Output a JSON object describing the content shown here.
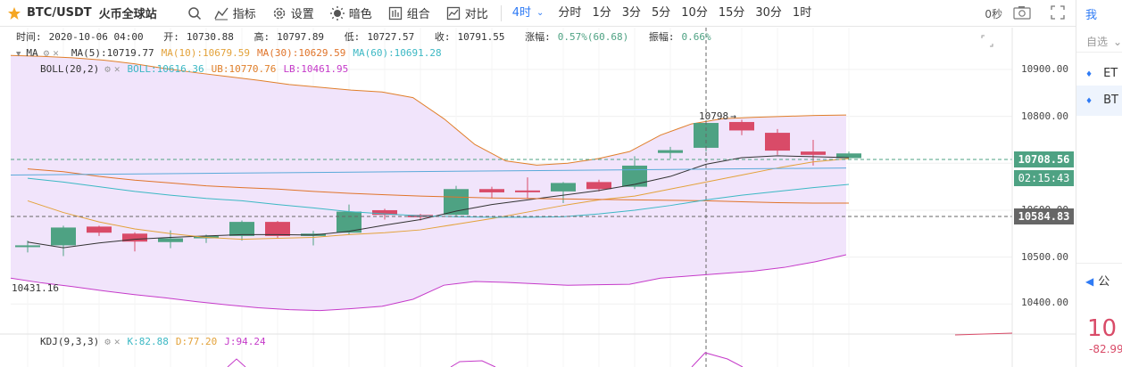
{
  "toolbar": {
    "symbol": "BTC/USDT",
    "exchange": "火币全球站",
    "indicators": "指标",
    "settings": "设置",
    "theme": "暗色",
    "combine": "组合",
    "compare": "对比",
    "intervals": [
      "4时",
      "分时",
      "1分",
      "3分",
      "5分",
      "10分",
      "15分",
      "30分",
      "1时"
    ],
    "active_interval": "4时",
    "countdown": "0秒"
  },
  "info": {
    "time_label": "时间:",
    "time": "2020-10-06 04:00",
    "open_label": "开:",
    "open": "10730.88",
    "high_label": "高:",
    "high": "10797.89",
    "low_label": "低:",
    "low": "10727.57",
    "close_label": "收:",
    "close": "10791.55",
    "change_label": "涨幅:",
    "change": "0.57%(60.68)",
    "amp_label": "振幅:",
    "amp": "0.66%"
  },
  "ma_legend": {
    "name": "MA",
    "ma5": "MA(5):10719.77",
    "ma10": "MA(10):10679.59",
    "ma30": "MA(30):10629.59",
    "ma60": "MA(60):10691.28"
  },
  "boll_legend": {
    "name": "BOLL(20,2)",
    "boll": "BOLL:10616.36",
    "ub": "UB:10770.76",
    "lb": "LB:10461.95"
  },
  "kdj_legend": {
    "name": "KDJ(9,3,3)",
    "k": "K:82.88",
    "d": "D:77.20",
    "j": "J:94.24"
  },
  "axis": {
    "ticks": [
      "10900.00",
      "10800.00",
      "10700.00",
      "10600.00",
      "10500.00",
      "10400.00"
    ],
    "last_price": "10708.56",
    "countdown": "02:15:43",
    "crosshair_price": "10584.83",
    "high_marker": "10798",
    "low_marker": "10431.16"
  },
  "sidebar": {
    "top": "我",
    "favorites": "自选",
    "item1": "ET",
    "item2": "BT",
    "notice": "公",
    "price": "10",
    "change": "-82.99"
  },
  "colors": {
    "up": "#4ea283",
    "down": "#d94b68",
    "ma5": "#333333",
    "ma10": "#e3a23a",
    "ma30": "#e0742a",
    "ma60": "#3cb8c4",
    "boll_band": "#e07f2a",
    "lb": "#c53ac9",
    "accent": "#2f7bf5"
  }
}
